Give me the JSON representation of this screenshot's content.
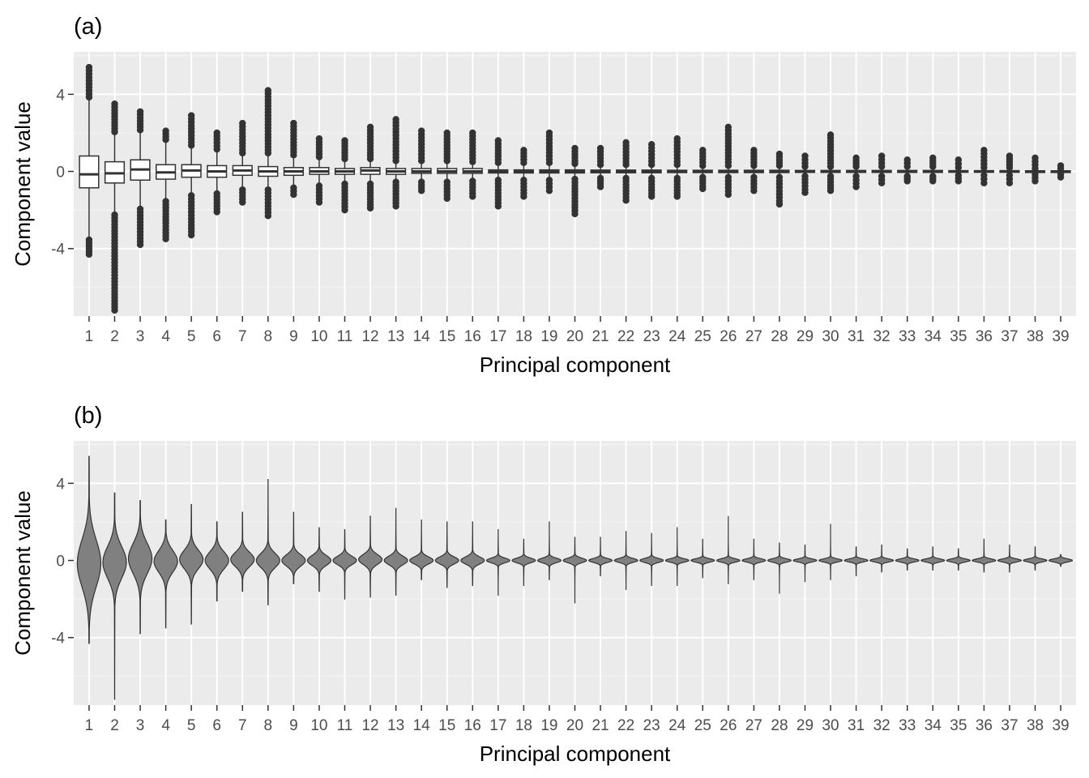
{
  "chart_data": [
    {
      "type": "boxplot",
      "panel_label": "(a)",
      "xlabel": "Principal component",
      "ylabel": "Component value",
      "ylim": [
        -7.5,
        6.2
      ],
      "y_ticks": [
        -4,
        0,
        4
      ],
      "grid": true,
      "categories": [
        "1",
        "2",
        "3",
        "4",
        "5",
        "6",
        "7",
        "8",
        "9",
        "10",
        "11",
        "12",
        "13",
        "14",
        "15",
        "16",
        "17",
        "18",
        "19",
        "20",
        "21",
        "22",
        "23",
        "24",
        "25",
        "26",
        "27",
        "28",
        "29",
        "30",
        "31",
        "32",
        "33",
        "34",
        "35",
        "36",
        "37",
        "38",
        "39"
      ],
      "boxes": [
        {
          "q1": -0.85,
          "median": -0.15,
          "q3": 0.8,
          "lower_whisker": -3.5,
          "upper_whisker": 3.8
        },
        {
          "q1": -0.6,
          "median": -0.1,
          "q3": 0.5,
          "lower_whisker": -2.2,
          "upper_whisker": 2.0
        },
        {
          "q1": -0.45,
          "median": 0.1,
          "q3": 0.6,
          "lower_whisker": -1.9,
          "upper_whisker": 2.1
        },
        {
          "q1": -0.4,
          "median": -0.05,
          "q3": 0.35,
          "lower_whisker": -1.5,
          "upper_whisker": 1.6
        },
        {
          "q1": -0.3,
          "median": 0.05,
          "q3": 0.35,
          "lower_whisker": -1.2,
          "upper_whisker": 1.3
        },
        {
          "q1": -0.3,
          "median": 0.0,
          "q3": 0.3,
          "lower_whisker": -1.1,
          "upper_whisker": 1.1
        },
        {
          "q1": -0.2,
          "median": 0.05,
          "q3": 0.3,
          "lower_whisker": -0.9,
          "upper_whisker": 0.9
        },
        {
          "q1": -0.25,
          "median": 0.0,
          "q3": 0.25,
          "lower_whisker": -0.9,
          "upper_whisker": 0.9
        },
        {
          "q1": -0.2,
          "median": 0.0,
          "q3": 0.2,
          "lower_whisker": -0.8,
          "upper_whisker": 0.8
        },
        {
          "q1": -0.15,
          "median": 0.0,
          "q3": 0.2,
          "lower_whisker": -0.7,
          "upper_whisker": 0.7
        },
        {
          "q1": -0.15,
          "median": 0.0,
          "q3": 0.15,
          "lower_whisker": -0.6,
          "upper_whisker": 0.6
        },
        {
          "q1": -0.15,
          "median": 0.05,
          "q3": 0.2,
          "lower_whisker": -0.6,
          "upper_whisker": 0.6
        },
        {
          "q1": -0.15,
          "median": 0.0,
          "q3": 0.15,
          "lower_whisker": -0.5,
          "upper_whisker": 0.5
        },
        {
          "q1": -0.1,
          "median": 0.0,
          "q3": 0.15,
          "lower_whisker": -0.5,
          "upper_whisker": 0.5
        },
        {
          "q1": -0.1,
          "median": 0.0,
          "q3": 0.15,
          "lower_whisker": -0.5,
          "upper_whisker": 0.5
        },
        {
          "q1": -0.1,
          "median": 0.0,
          "q3": 0.15,
          "lower_whisker": -0.45,
          "upper_whisker": 0.45
        },
        {
          "q1": -0.08,
          "median": 0.0,
          "q3": 0.08,
          "lower_whisker": -0.4,
          "upper_whisker": 0.4
        },
        {
          "q1": -0.08,
          "median": 0.0,
          "q3": 0.08,
          "lower_whisker": -0.4,
          "upper_whisker": 0.4
        },
        {
          "q1": -0.08,
          "median": 0.0,
          "q3": 0.08,
          "lower_whisker": -0.4,
          "upper_whisker": 0.4
        },
        {
          "q1": -0.08,
          "median": 0.0,
          "q3": 0.08,
          "lower_whisker": -0.35,
          "upper_whisker": 0.35
        },
        {
          "q1": -0.07,
          "median": 0.0,
          "q3": 0.07,
          "lower_whisker": -0.3,
          "upper_whisker": 0.3
        },
        {
          "q1": -0.07,
          "median": 0.0,
          "q3": 0.07,
          "lower_whisker": -0.3,
          "upper_whisker": 0.3
        },
        {
          "q1": -0.07,
          "median": 0.0,
          "q3": 0.07,
          "lower_whisker": -0.3,
          "upper_whisker": 0.3
        },
        {
          "q1": -0.06,
          "median": 0.0,
          "q3": 0.06,
          "lower_whisker": -0.3,
          "upper_whisker": 0.3
        },
        {
          "q1": -0.06,
          "median": 0.0,
          "q3": 0.06,
          "lower_whisker": -0.25,
          "upper_whisker": 0.25
        },
        {
          "q1": -0.06,
          "median": 0.0,
          "q3": 0.06,
          "lower_whisker": -0.25,
          "upper_whisker": 0.25
        },
        {
          "q1": -0.06,
          "median": 0.0,
          "q3": 0.06,
          "lower_whisker": -0.25,
          "upper_whisker": 0.25
        },
        {
          "q1": -0.06,
          "median": 0.0,
          "q3": 0.06,
          "lower_whisker": -0.25,
          "upper_whisker": 0.25
        },
        {
          "q1": -0.05,
          "median": 0.0,
          "q3": 0.05,
          "lower_whisker": -0.2,
          "upper_whisker": 0.2
        },
        {
          "q1": -0.05,
          "median": 0.0,
          "q3": 0.05,
          "lower_whisker": -0.2,
          "upper_whisker": 0.2
        },
        {
          "q1": -0.05,
          "median": 0.0,
          "q3": 0.05,
          "lower_whisker": -0.2,
          "upper_whisker": 0.2
        },
        {
          "q1": -0.05,
          "median": 0.0,
          "q3": 0.05,
          "lower_whisker": -0.2,
          "upper_whisker": 0.2
        },
        {
          "q1": -0.05,
          "median": 0.0,
          "q3": 0.05,
          "lower_whisker": -0.2,
          "upper_whisker": 0.2
        },
        {
          "q1": -0.05,
          "median": 0.0,
          "q3": 0.05,
          "lower_whisker": -0.2,
          "upper_whisker": 0.2
        },
        {
          "q1": -0.04,
          "median": 0.0,
          "q3": 0.04,
          "lower_whisker": -0.15,
          "upper_whisker": 0.15
        },
        {
          "q1": -0.04,
          "median": 0.0,
          "q3": 0.04,
          "lower_whisker": -0.15,
          "upper_whisker": 0.15
        },
        {
          "q1": -0.04,
          "median": 0.0,
          "q3": 0.04,
          "lower_whisker": -0.15,
          "upper_whisker": 0.15
        },
        {
          "q1": -0.03,
          "median": 0.0,
          "q3": 0.03,
          "lower_whisker": -0.1,
          "upper_whisker": 0.1
        },
        {
          "q1": -0.03,
          "median": 0.0,
          "q3": 0.03,
          "lower_whisker": -0.1,
          "upper_whisker": 0.1
        }
      ],
      "outlier_ranges": [
        {
          "min": -4.3,
          "max": 5.4
        },
        {
          "min": -7.2,
          "max": 3.5
        },
        {
          "min": -3.8,
          "max": 3.1
        },
        {
          "min": -3.5,
          "max": 2.1
        },
        {
          "min": -3.3,
          "max": 2.9
        },
        {
          "min": -2.1,
          "max": 2.0
        },
        {
          "min": -1.6,
          "max": 2.5
        },
        {
          "min": -2.3,
          "max": 4.2
        },
        {
          "min": -1.2,
          "max": 2.5
        },
        {
          "min": -1.6,
          "max": 1.7
        },
        {
          "min": -2.0,
          "max": 1.6
        },
        {
          "min": -1.9,
          "max": 2.3
        },
        {
          "min": -1.8,
          "max": 2.7
        },
        {
          "min": -1.0,
          "max": 2.1
        },
        {
          "min": -1.4,
          "max": 2.0
        },
        {
          "min": -1.3,
          "max": 2.0
        },
        {
          "min": -1.8,
          "max": 1.6
        },
        {
          "min": -1.3,
          "max": 1.1
        },
        {
          "min": -1.0,
          "max": 2.0
        },
        {
          "min": -2.2,
          "max": 1.2
        },
        {
          "min": -0.8,
          "max": 1.2
        },
        {
          "min": -1.5,
          "max": 1.5
        },
        {
          "min": -1.3,
          "max": 1.4
        },
        {
          "min": -1.3,
          "max": 1.7
        },
        {
          "min": -0.9,
          "max": 1.1
        },
        {
          "min": -1.2,
          "max": 2.3
        },
        {
          "min": -1.0,
          "max": 1.1
        },
        {
          "min": -1.7,
          "max": 0.9
        },
        {
          "min": -1.1,
          "max": 0.8
        },
        {
          "min": -1.0,
          "max": 1.9
        },
        {
          "min": -0.8,
          "max": 0.7
        },
        {
          "min": -0.6,
          "max": 0.8
        },
        {
          "min": -0.5,
          "max": 0.6
        },
        {
          "min": -0.5,
          "max": 0.7
        },
        {
          "min": -0.5,
          "max": 0.6
        },
        {
          "min": -0.6,
          "max": 1.1
        },
        {
          "min": -0.6,
          "max": 0.8
        },
        {
          "min": -0.5,
          "max": 0.7
        },
        {
          "min": -0.3,
          "max": 0.3
        }
      ]
    },
    {
      "type": "violin",
      "panel_label": "(b)",
      "xlabel": "Principal component",
      "ylabel": "Component value",
      "ylim": [
        -7.5,
        6.2
      ],
      "y_ticks": [
        -4,
        0,
        4
      ],
      "grid": true,
      "fill_color": "#808080",
      "categories": [
        "1",
        "2",
        "3",
        "4",
        "5",
        "6",
        "7",
        "8",
        "9",
        "10",
        "11",
        "12",
        "13",
        "14",
        "15",
        "16",
        "17",
        "18",
        "19",
        "20",
        "21",
        "22",
        "23",
        "24",
        "25",
        "26",
        "27",
        "28",
        "29",
        "30",
        "31",
        "32",
        "33",
        "34",
        "35",
        "36",
        "37",
        "38",
        "39"
      ],
      "ranges": [
        {
          "min": -4.3,
          "max": 5.4
        },
        {
          "min": -7.2,
          "max": 3.5
        },
        {
          "min": -3.8,
          "max": 3.1
        },
        {
          "min": -3.5,
          "max": 2.1
        },
        {
          "min": -3.3,
          "max": 2.9
        },
        {
          "min": -2.1,
          "max": 2.0
        },
        {
          "min": -1.6,
          "max": 2.5
        },
        {
          "min": -2.3,
          "max": 4.2
        },
        {
          "min": -1.2,
          "max": 2.5
        },
        {
          "min": -1.6,
          "max": 1.7
        },
        {
          "min": -2.0,
          "max": 1.6
        },
        {
          "min": -1.9,
          "max": 2.3
        },
        {
          "min": -1.8,
          "max": 2.7
        },
        {
          "min": -1.0,
          "max": 2.1
        },
        {
          "min": -1.4,
          "max": 2.0
        },
        {
          "min": -1.3,
          "max": 2.0
        },
        {
          "min": -1.8,
          "max": 1.6
        },
        {
          "min": -1.3,
          "max": 1.1
        },
        {
          "min": -1.0,
          "max": 2.0
        },
        {
          "min": -2.2,
          "max": 1.2
        },
        {
          "min": -0.8,
          "max": 1.2
        },
        {
          "min": -1.5,
          "max": 1.5
        },
        {
          "min": -1.3,
          "max": 1.4
        },
        {
          "min": -1.3,
          "max": 1.7
        },
        {
          "min": -0.9,
          "max": 1.1
        },
        {
          "min": -1.2,
          "max": 2.3
        },
        {
          "min": -1.0,
          "max": 1.1
        },
        {
          "min": -1.7,
          "max": 0.9
        },
        {
          "min": -1.1,
          "max": 0.8
        },
        {
          "min": -1.0,
          "max": 1.9
        },
        {
          "min": -0.8,
          "max": 0.7
        },
        {
          "min": -0.6,
          "max": 0.8
        },
        {
          "min": -0.5,
          "max": 0.6
        },
        {
          "min": -0.5,
          "max": 0.7
        },
        {
          "min": -0.5,
          "max": 0.6
        },
        {
          "min": -0.6,
          "max": 1.1
        },
        {
          "min": -0.6,
          "max": 0.8
        },
        {
          "min": -0.5,
          "max": 0.7
        },
        {
          "min": -0.3,
          "max": 0.3
        }
      ]
    }
  ]
}
